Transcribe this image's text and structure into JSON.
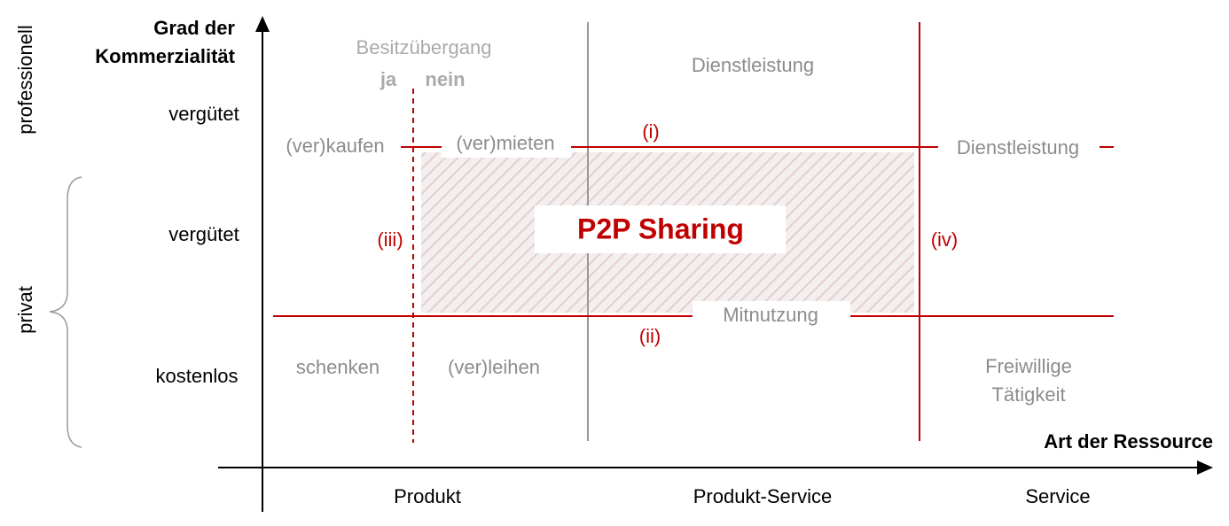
{
  "y_axis": {
    "title": [
      "Grad der",
      "Kommerzialität"
    ],
    "groups": [
      "professionell",
      "privat"
    ],
    "levels": [
      "vergütet",
      "vergütet",
      "kostenlos"
    ]
  },
  "x_axis": {
    "title": "Art der Ressource",
    "categories": [
      "Produkt",
      "Produkt-Service",
      "Service"
    ]
  },
  "ownership_transfer": {
    "label": "Besitzübergang",
    "yes": "ja",
    "no": "nein"
  },
  "labels": {
    "service_top": "Dienstleistung",
    "buy": "(ver)kaufen",
    "rent": "(ver)mieten",
    "service_right": "Dienstleistung",
    "co_use": "Mitnutzung",
    "gift": "schenken",
    "lend": "(ver)leihen",
    "volunteer": [
      "Freiwillige",
      "Tätigkeit"
    ]
  },
  "boundaries": [
    "(i)",
    "(ii)",
    "(iii)",
    "(iv)"
  ],
  "highlight": "P2P Sharing"
}
